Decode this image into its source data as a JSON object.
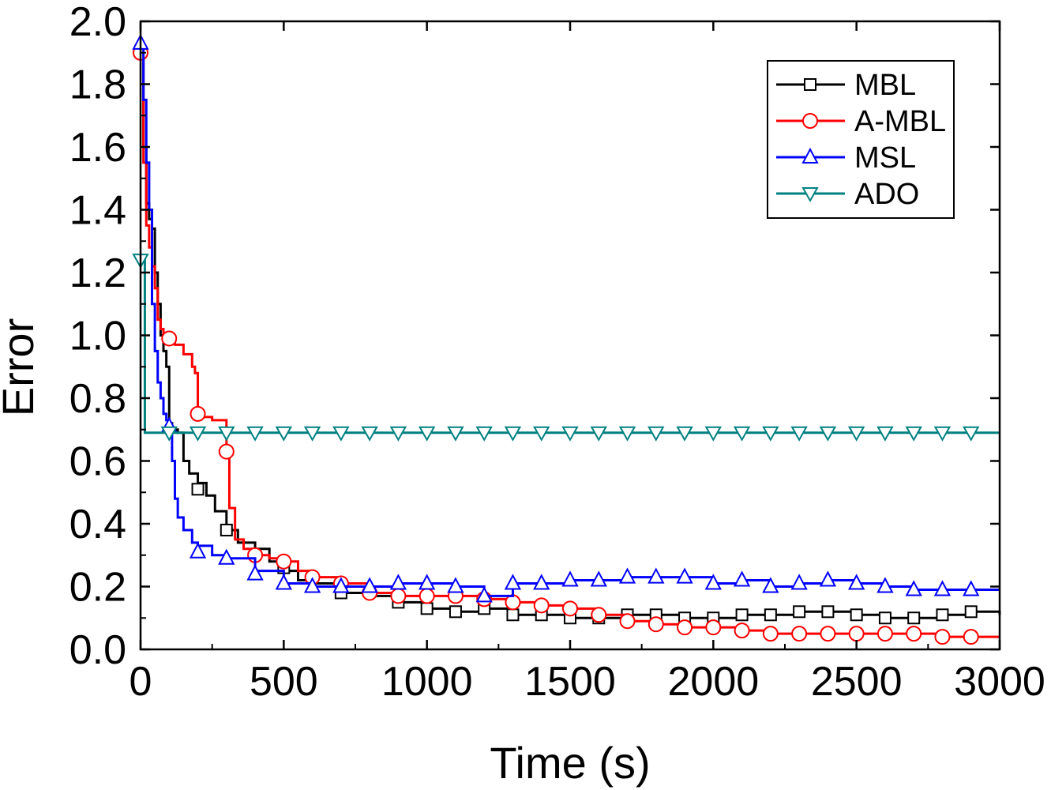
{
  "chart_data": {
    "type": "line",
    "title": "",
    "xlabel": "Time (s)",
    "ylabel": "Error",
    "xlim": [
      0,
      3000
    ],
    "ylim": [
      0.0,
      2.0
    ],
    "xticks": [
      "0",
      "500",
      "1000",
      "1500",
      "2000",
      "2500",
      "3000"
    ],
    "xtick_values": [
      0,
      500,
      1000,
      1500,
      2000,
      2500,
      3000
    ],
    "yticks": [
      "0.0",
      "0.2",
      "0.4",
      "0.6",
      "0.8",
      "1.0",
      "1.2",
      "1.4",
      "1.6",
      "1.8",
      "2.0"
    ],
    "ytick_values": [
      0.0,
      0.2,
      0.4,
      0.6,
      0.8,
      1.0,
      1.2,
      1.4,
      1.6,
      1.8,
      2.0
    ],
    "grid": false,
    "legend_position": "top-right",
    "series": [
      {
        "name": "MBL",
        "color": "#000000",
        "marker": "square",
        "points": [
          [
            0,
            1.9
          ],
          [
            10,
            1.6
          ],
          [
            20,
            1.42
          ],
          [
            30,
            1.37
          ],
          [
            40,
            1.34
          ],
          [
            50,
            1.2
          ],
          [
            60,
            1.1
          ],
          [
            70,
            1.0
          ],
          [
            80,
            0.95
          ],
          [
            90,
            0.9
          ],
          [
            100,
            0.72
          ],
          [
            110,
            0.7
          ],
          [
            130,
            0.69
          ],
          [
            150,
            0.6
          ],
          [
            170,
            0.56
          ],
          [
            200,
            0.53
          ],
          [
            230,
            0.49
          ],
          [
            260,
            0.44
          ],
          [
            300,
            0.38
          ],
          [
            340,
            0.34
          ],
          [
            400,
            0.32
          ],
          [
            450,
            0.28
          ],
          [
            500,
            0.25
          ],
          [
            550,
            0.22
          ],
          [
            600,
            0.21
          ],
          [
            700,
            0.18
          ],
          [
            800,
            0.17
          ],
          [
            900,
            0.15
          ],
          [
            1000,
            0.13
          ],
          [
            1100,
            0.12
          ],
          [
            1200,
            0.13
          ],
          [
            1300,
            0.11
          ],
          [
            1400,
            0.11
          ],
          [
            1500,
            0.1
          ],
          [
            1600,
            0.1
          ],
          [
            1700,
            0.11
          ],
          [
            1800,
            0.11
          ],
          [
            1900,
            0.1
          ],
          [
            2000,
            0.1
          ],
          [
            2100,
            0.11
          ],
          [
            2200,
            0.11
          ],
          [
            2300,
            0.12
          ],
          [
            2400,
            0.12
          ],
          [
            2500,
            0.11
          ],
          [
            2600,
            0.1
          ],
          [
            2700,
            0.1
          ],
          [
            2800,
            0.11
          ],
          [
            2900,
            0.12
          ],
          [
            3000,
            0.11
          ]
        ],
        "marker_points": [
          [
            200,
            0.51
          ],
          [
            300,
            0.38
          ],
          [
            500,
            0.26
          ],
          [
            700,
            0.18
          ],
          [
            900,
            0.15
          ],
          [
            1000,
            0.13
          ],
          [
            1100,
            0.12
          ],
          [
            1200,
            0.13
          ],
          [
            1300,
            0.11
          ],
          [
            1400,
            0.11
          ],
          [
            1500,
            0.1
          ],
          [
            1600,
            0.1
          ],
          [
            1700,
            0.11
          ],
          [
            1800,
            0.11
          ],
          [
            1900,
            0.1
          ],
          [
            2000,
            0.1
          ],
          [
            2100,
            0.11
          ],
          [
            2200,
            0.11
          ],
          [
            2300,
            0.12
          ],
          [
            2400,
            0.12
          ],
          [
            2500,
            0.11
          ],
          [
            2600,
            0.1
          ],
          [
            2700,
            0.1
          ],
          [
            2800,
            0.11
          ],
          [
            2900,
            0.12
          ]
        ]
      },
      {
        "name": "A-MBL",
        "color": "#ff0000",
        "marker": "circle",
        "points": [
          [
            0,
            1.9
          ],
          [
            10,
            1.55
          ],
          [
            20,
            1.35
          ],
          [
            30,
            1.28
          ],
          [
            40,
            1.22
          ],
          [
            50,
            1.15
          ],
          [
            60,
            1.05
          ],
          [
            70,
            1.02
          ],
          [
            80,
            1.0
          ],
          [
            100,
            0.99
          ],
          [
            120,
            0.97
          ],
          [
            150,
            0.94
          ],
          [
            180,
            0.9
          ],
          [
            190,
            0.88
          ],
          [
            200,
            0.75
          ],
          [
            220,
            0.74
          ],
          [
            250,
            0.73
          ],
          [
            280,
            0.73
          ],
          [
            300,
            0.63
          ],
          [
            310,
            0.45
          ],
          [
            330,
            0.35
          ],
          [
            360,
            0.32
          ],
          [
            400,
            0.3
          ],
          [
            450,
            0.29
          ],
          [
            500,
            0.28
          ],
          [
            550,
            0.25
          ],
          [
            600,
            0.23
          ],
          [
            700,
            0.21
          ],
          [
            800,
            0.18
          ],
          [
            900,
            0.17
          ],
          [
            1000,
            0.17
          ],
          [
            1100,
            0.17
          ],
          [
            1200,
            0.16
          ],
          [
            1300,
            0.15
          ],
          [
            1400,
            0.14
          ],
          [
            1500,
            0.13
          ],
          [
            1600,
            0.11
          ],
          [
            1700,
            0.09
          ],
          [
            1800,
            0.08
          ],
          [
            1900,
            0.07
          ],
          [
            2000,
            0.07
          ],
          [
            2100,
            0.06
          ],
          [
            2200,
            0.05
          ],
          [
            2300,
            0.05
          ],
          [
            2400,
            0.05
          ],
          [
            2500,
            0.05
          ],
          [
            2600,
            0.05
          ],
          [
            2700,
            0.05
          ],
          [
            2800,
            0.04
          ],
          [
            2900,
            0.04
          ],
          [
            3000,
            0.04
          ]
        ],
        "marker_points": [
          [
            0,
            1.9
          ],
          [
            100,
            0.99
          ],
          [
            200,
            0.75
          ],
          [
            300,
            0.63
          ],
          [
            400,
            0.3
          ],
          [
            500,
            0.28
          ],
          [
            600,
            0.23
          ],
          [
            700,
            0.21
          ],
          [
            800,
            0.18
          ],
          [
            900,
            0.17
          ],
          [
            1000,
            0.17
          ],
          [
            1100,
            0.17
          ],
          [
            1200,
            0.16
          ],
          [
            1300,
            0.15
          ],
          [
            1400,
            0.14
          ],
          [
            1500,
            0.13
          ],
          [
            1600,
            0.11
          ],
          [
            1700,
            0.09
          ],
          [
            1800,
            0.08
          ],
          [
            1900,
            0.07
          ],
          [
            2000,
            0.07
          ],
          [
            2100,
            0.06
          ],
          [
            2200,
            0.05
          ],
          [
            2300,
            0.05
          ],
          [
            2400,
            0.05
          ],
          [
            2500,
            0.05
          ],
          [
            2600,
            0.05
          ],
          [
            2700,
            0.05
          ],
          [
            2800,
            0.04
          ],
          [
            2900,
            0.04
          ]
        ]
      },
      {
        "name": "MSL",
        "color": "#0000ff",
        "marker": "triangle-up",
        "points": [
          [
            0,
            1.93
          ],
          [
            10,
            1.75
          ],
          [
            20,
            1.55
          ],
          [
            30,
            1.4
          ],
          [
            40,
            1.1
          ],
          [
            50,
            0.95
          ],
          [
            60,
            0.85
          ],
          [
            70,
            0.8
          ],
          [
            80,
            0.75
          ],
          [
            90,
            0.73
          ],
          [
            100,
            0.71
          ],
          [
            110,
            0.6
          ],
          [
            120,
            0.48
          ],
          [
            130,
            0.42
          ],
          [
            150,
            0.38
          ],
          [
            180,
            0.34
          ],
          [
            200,
            0.33
          ],
          [
            250,
            0.3
          ],
          [
            300,
            0.29
          ],
          [
            400,
            0.25
          ],
          [
            500,
            0.21
          ],
          [
            600,
            0.2
          ],
          [
            700,
            0.2
          ],
          [
            800,
            0.2
          ],
          [
            900,
            0.21
          ],
          [
            1000,
            0.21
          ],
          [
            1100,
            0.2
          ],
          [
            1200,
            0.17
          ],
          [
            1300,
            0.21
          ],
          [
            1400,
            0.21
          ],
          [
            1500,
            0.22
          ],
          [
            1600,
            0.22
          ],
          [
            1700,
            0.23
          ],
          [
            1800,
            0.23
          ],
          [
            1900,
            0.23
          ],
          [
            2000,
            0.21
          ],
          [
            2100,
            0.22
          ],
          [
            2200,
            0.2
          ],
          [
            2300,
            0.21
          ],
          [
            2400,
            0.22
          ],
          [
            2500,
            0.21
          ],
          [
            2600,
            0.2
          ],
          [
            2700,
            0.19
          ],
          [
            2800,
            0.19
          ],
          [
            2900,
            0.19
          ],
          [
            3000,
            0.19
          ]
        ],
        "marker_points": [
          [
            0,
            1.93
          ],
          [
            100,
            0.71
          ],
          [
            200,
            0.31
          ],
          [
            300,
            0.29
          ],
          [
            400,
            0.24
          ],
          [
            500,
            0.21
          ],
          [
            600,
            0.2
          ],
          [
            700,
            0.2
          ],
          [
            800,
            0.2
          ],
          [
            900,
            0.21
          ],
          [
            1000,
            0.21
          ],
          [
            1100,
            0.2
          ],
          [
            1200,
            0.17
          ],
          [
            1300,
            0.21
          ],
          [
            1400,
            0.21
          ],
          [
            1500,
            0.22
          ],
          [
            1600,
            0.22
          ],
          [
            1700,
            0.23
          ],
          [
            1800,
            0.23
          ],
          [
            1900,
            0.23
          ],
          [
            2000,
            0.21
          ],
          [
            2100,
            0.22
          ],
          [
            2200,
            0.2
          ],
          [
            2300,
            0.21
          ],
          [
            2400,
            0.22
          ],
          [
            2500,
            0.21
          ],
          [
            2600,
            0.2
          ],
          [
            2700,
            0.19
          ],
          [
            2800,
            0.19
          ],
          [
            2900,
            0.19
          ]
        ]
      },
      {
        "name": "ADO",
        "color": "#008080",
        "marker": "triangle-down",
        "points": [
          [
            0,
            1.25
          ],
          [
            10,
            1.25
          ],
          [
            15,
            0.69
          ],
          [
            3000,
            0.69
          ]
        ],
        "marker_points": [
          [
            0,
            1.24
          ],
          [
            100,
            0.69
          ],
          [
            200,
            0.69
          ],
          [
            300,
            0.69
          ],
          [
            400,
            0.69
          ],
          [
            500,
            0.69
          ],
          [
            600,
            0.69
          ],
          [
            700,
            0.69
          ],
          [
            800,
            0.69
          ],
          [
            900,
            0.69
          ],
          [
            1000,
            0.69
          ],
          [
            1100,
            0.69
          ],
          [
            1200,
            0.69
          ],
          [
            1300,
            0.69
          ],
          [
            1400,
            0.69
          ],
          [
            1500,
            0.69
          ],
          [
            1600,
            0.69
          ],
          [
            1700,
            0.69
          ],
          [
            1800,
            0.69
          ],
          [
            1900,
            0.69
          ],
          [
            2000,
            0.69
          ],
          [
            2100,
            0.69
          ],
          [
            2200,
            0.69
          ],
          [
            2300,
            0.69
          ],
          [
            2400,
            0.69
          ],
          [
            2500,
            0.69
          ],
          [
            2600,
            0.69
          ],
          [
            2700,
            0.69
          ],
          [
            2800,
            0.69
          ],
          [
            2900,
            0.69
          ]
        ]
      }
    ]
  }
}
